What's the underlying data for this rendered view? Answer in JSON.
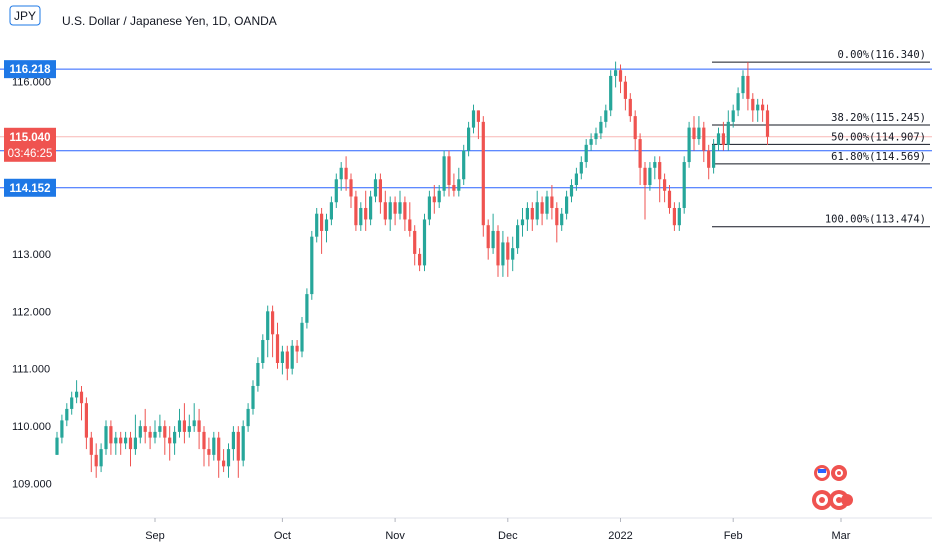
{
  "header": {
    "symbol_badge": "JPY",
    "title": "U.S. Dollar / Japanese Yen, 1D, OANDA"
  },
  "colors": {
    "up": "#26a69a",
    "down": "#ef5350",
    "hline": "#2962ff",
    "price_line": "#f8b7b5",
    "fib": "#131722",
    "tag_blue": "#1e78e6",
    "tag_red": "#ef5350"
  },
  "price_tags": {
    "current": "115.040",
    "countdown": "03:46:25"
  },
  "horizontal_lines": [
    {
      "value": 116.218,
      "label": "116.218"
    },
    {
      "value": 114.797,
      "label": "114.797"
    },
    {
      "value": 114.152,
      "label": "114.152"
    }
  ],
  "chart_data": {
    "type": "candlestick",
    "title": "U.S. Dollar / Japanese Yen, 1D, OANDA",
    "y_axis": {
      "min": 108.4,
      "max": 116.9,
      "ticks": [
        109,
        110,
        111,
        112,
        113,
        116
      ],
      "tick_labels": [
        "109.000",
        "110.000",
        "111.000",
        "112.000",
        "113.000",
        "116.000"
      ],
      "position": "left"
    },
    "x_axis": {
      "labels": [
        "Sep",
        "Oct",
        "Nov",
        "Dec",
        "2022",
        "Feb",
        "Mar"
      ],
      "label_index": [
        20,
        46,
        69,
        92,
        115,
        138,
        160
      ]
    },
    "fibonacci": [
      {
        "label": "0.00%(116.340)",
        "value": 116.34
      },
      {
        "label": "38.20%(115.245)",
        "value": 115.245
      },
      {
        "label": "50.00%(114.907)",
        "value": 114.907
      },
      {
        "label": "61.80%(114.569)",
        "value": 114.569
      },
      {
        "label": "100.00%(113.474)",
        "value": 113.474
      }
    ],
    "fib_range_index": [
      130,
      170
    ],
    "candles": [
      [
        109.5,
        109.8,
        109.5,
        109.9
      ],
      [
        109.8,
        110.1,
        109.7,
        110.2
      ],
      [
        110.1,
        110.3,
        110.0,
        110.4
      ],
      [
        110.3,
        110.5,
        110.2,
        110.6
      ],
      [
        110.5,
        110.6,
        110.4,
        110.8
      ],
      [
        110.6,
        110.4,
        110.1,
        110.7
      ],
      [
        110.4,
        109.8,
        109.6,
        110.5
      ],
      [
        109.8,
        109.5,
        109.2,
        109.9
      ],
      [
        109.5,
        109.3,
        109.1,
        109.7
      ],
      [
        109.3,
        109.6,
        109.2,
        109.7
      ],
      [
        109.6,
        110.0,
        109.5,
        110.1
      ],
      [
        110.0,
        109.7,
        109.5,
        110.1
      ],
      [
        109.7,
        109.8,
        109.5,
        109.9
      ],
      [
        109.8,
        109.7,
        109.5,
        109.9
      ],
      [
        109.7,
        109.8,
        109.6,
        109.9
      ],
      [
        109.8,
        109.6,
        109.3,
        109.9
      ],
      [
        109.6,
        109.8,
        109.5,
        110.2
      ],
      [
        109.8,
        110.0,
        109.7,
        110.1
      ],
      [
        110.0,
        109.9,
        109.7,
        110.3
      ],
      [
        109.9,
        109.8,
        109.6,
        110.0
      ],
      [
        109.8,
        109.9,
        109.7,
        110.1
      ],
      [
        109.9,
        110.0,
        109.8,
        110.2
      ],
      [
        110.0,
        109.8,
        109.5,
        110.1
      ],
      [
        109.8,
        109.7,
        109.4,
        110.0
      ],
      [
        109.7,
        109.9,
        109.5,
        110.0
      ],
      [
        109.9,
        110.1,
        109.8,
        110.3
      ],
      [
        110.1,
        109.9,
        109.7,
        110.4
      ],
      [
        109.9,
        110.0,
        109.8,
        110.2
      ],
      [
        110.0,
        110.1,
        109.9,
        110.4
      ],
      [
        110.1,
        109.9,
        109.6,
        110.3
      ],
      [
        109.9,
        109.6,
        109.3,
        110.0
      ],
      [
        109.6,
        109.5,
        109.3,
        109.8
      ],
      [
        109.5,
        109.8,
        109.4,
        109.9
      ],
      [
        109.8,
        109.4,
        109.1,
        109.9
      ],
      [
        109.4,
        109.3,
        109.2,
        109.6
      ],
      [
        109.3,
        109.6,
        109.1,
        109.7
      ],
      [
        109.6,
        109.9,
        109.4,
        110.0
      ],
      [
        109.9,
        109.4,
        109.1,
        110.0
      ],
      [
        109.4,
        110.0,
        109.3,
        110.1
      ],
      [
        110.0,
        110.3,
        109.9,
        110.4
      ],
      [
        110.3,
        110.7,
        110.2,
        110.8
      ],
      [
        110.7,
        111.1,
        110.6,
        111.2
      ],
      [
        111.1,
        111.5,
        111.0,
        111.6
      ],
      [
        111.5,
        112.0,
        111.2,
        112.1
      ],
      [
        112.0,
        111.6,
        111.2,
        112.1
      ],
      [
        111.6,
        111.1,
        111.0,
        111.8
      ],
      [
        111.1,
        111.3,
        110.9,
        111.4
      ],
      [
        111.3,
        111.0,
        110.8,
        111.4
      ],
      [
        111.0,
        111.4,
        110.9,
        111.5
      ],
      [
        111.4,
        111.3,
        111.1,
        111.5
      ],
      [
        111.3,
        111.8,
        111.2,
        111.9
      ],
      [
        111.8,
        112.3,
        111.7,
        112.4
      ],
      [
        112.3,
        113.3,
        112.2,
        113.4
      ],
      [
        113.3,
        113.7,
        113.2,
        113.8
      ],
      [
        113.7,
        113.4,
        113.0,
        113.8
      ],
      [
        113.4,
        113.6,
        113.2,
        113.7
      ],
      [
        113.6,
        113.9,
        113.5,
        114.0
      ],
      [
        113.9,
        114.3,
        113.8,
        114.4
      ],
      [
        114.3,
        114.5,
        114.1,
        114.6
      ],
      [
        114.5,
        114.3,
        114.1,
        114.7
      ],
      [
        114.3,
        114.0,
        113.8,
        114.4
      ],
      [
        114.0,
        113.5,
        113.4,
        114.1
      ],
      [
        113.5,
        113.8,
        113.4,
        113.9
      ],
      [
        113.8,
        113.6,
        113.4,
        114.1
      ],
      [
        113.6,
        114.0,
        113.5,
        114.1
      ],
      [
        114.0,
        114.3,
        113.9,
        114.4
      ],
      [
        114.3,
        113.9,
        113.7,
        114.4
      ],
      [
        113.9,
        113.6,
        113.5,
        114.1
      ],
      [
        113.6,
        113.9,
        113.4,
        114.0
      ],
      [
        113.9,
        113.7,
        113.5,
        114.0
      ],
      [
        113.7,
        113.9,
        113.6,
        114.1
      ],
      [
        113.9,
        113.6,
        113.4,
        114.0
      ],
      [
        113.6,
        113.4,
        113.3,
        113.9
      ],
      [
        113.4,
        113.0,
        112.8,
        113.5
      ],
      [
        113.0,
        112.8,
        112.7,
        113.1
      ],
      [
        112.8,
        113.6,
        112.7,
        113.7
      ],
      [
        113.6,
        114.0,
        113.5,
        114.1
      ],
      [
        114.0,
        113.9,
        113.7,
        114.2
      ],
      [
        113.9,
        114.1,
        113.8,
        114.2
      ],
      [
        114.1,
        114.7,
        114.0,
        114.8
      ],
      [
        114.7,
        114.2,
        114.0,
        114.8
      ],
      [
        114.2,
        114.1,
        114.0,
        114.4
      ],
      [
        114.1,
        114.3,
        114.0,
        114.5
      ],
      [
        114.3,
        114.8,
        114.2,
        114.9
      ],
      [
        114.8,
        115.2,
        114.7,
        115.3
      ],
      [
        115.2,
        115.5,
        115.1,
        115.6
      ],
      [
        115.5,
        115.3,
        115.0,
        115.5
      ],
      [
        115.3,
        113.5,
        113.3,
        115.4
      ],
      [
        113.5,
        113.1,
        112.9,
        113.6
      ],
      [
        113.1,
        113.4,
        113.0,
        113.7
      ],
      [
        113.4,
        112.8,
        112.6,
        113.5
      ],
      [
        112.8,
        113.2,
        112.6,
        113.4
      ],
      [
        113.2,
        112.9,
        112.6,
        113.3
      ],
      [
        112.9,
        113.1,
        112.7,
        113.3
      ],
      [
        113.1,
        113.5,
        113.0,
        113.6
      ],
      [
        113.5,
        113.6,
        113.3,
        113.8
      ],
      [
        113.6,
        113.8,
        113.4,
        113.9
      ],
      [
        113.8,
        113.6,
        113.4,
        113.9
      ],
      [
        113.6,
        113.9,
        113.5,
        114.1
      ],
      [
        113.9,
        113.7,
        113.5,
        114.0
      ],
      [
        113.7,
        114.0,
        113.6,
        114.1
      ],
      [
        114.0,
        113.8,
        113.6,
        114.2
      ],
      [
        113.8,
        113.5,
        113.2,
        113.9
      ],
      [
        113.5,
        113.7,
        113.4,
        113.8
      ],
      [
        113.7,
        114.0,
        113.6,
        114.1
      ],
      [
        114.0,
        114.2,
        113.9,
        114.3
      ],
      [
        114.2,
        114.4,
        114.1,
        114.5
      ],
      [
        114.4,
        114.6,
        114.3,
        114.7
      ],
      [
        114.6,
        114.9,
        114.5,
        115.0
      ],
      [
        114.9,
        115.0,
        114.8,
        115.1
      ],
      [
        115.0,
        115.1,
        114.9,
        115.2
      ],
      [
        115.1,
        115.3,
        115.0,
        115.4
      ],
      [
        115.3,
        115.5,
        115.2,
        115.6
      ],
      [
        115.5,
        116.1,
        115.4,
        116.2
      ],
      [
        116.1,
        116.2,
        115.9,
        116.35
      ],
      [
        116.2,
        116.0,
        115.8,
        116.3
      ],
      [
        116.0,
        115.7,
        115.5,
        116.1
      ],
      [
        115.7,
        115.4,
        115.3,
        115.8
      ],
      [
        115.4,
        115.0,
        114.8,
        115.5
      ],
      [
        115.0,
        114.5,
        114.2,
        115.1
      ],
      [
        114.5,
        114.2,
        113.6,
        114.6
      ],
      [
        114.2,
        114.5,
        114.1,
        114.6
      ],
      [
        114.5,
        114.6,
        114.3,
        114.7
      ],
      [
        114.6,
        114.3,
        113.9,
        114.7
      ],
      [
        114.3,
        114.1,
        113.9,
        114.4
      ],
      [
        114.1,
        113.8,
        113.7,
        114.2
      ],
      [
        113.8,
        113.5,
        113.4,
        113.9
      ],
      [
        113.5,
        113.8,
        113.4,
        113.9
      ],
      [
        113.8,
        114.6,
        113.7,
        114.7
      ],
      [
        114.6,
        115.2,
        114.5,
        115.3
      ],
      [
        115.2,
        115.0,
        114.8,
        115.4
      ],
      [
        115.0,
        115.2,
        114.9,
        115.4
      ],
      [
        115.2,
        114.8,
        114.6,
        115.3
      ],
      [
        114.8,
        114.5,
        114.3,
        114.9
      ],
      [
        114.5,
        114.9,
        114.4,
        115.0
      ],
      [
        114.9,
        115.1,
        114.8,
        115.2
      ],
      [
        115.1,
        114.9,
        114.8,
        115.3
      ],
      [
        114.9,
        115.3,
        114.8,
        115.5
      ],
      [
        115.3,
        115.5,
        115.2,
        115.6
      ],
      [
        115.5,
        115.8,
        115.4,
        115.9
      ],
      [
        115.8,
        116.1,
        115.7,
        116.2
      ],
      [
        116.1,
        115.7,
        115.5,
        116.34
      ],
      [
        115.7,
        115.5,
        115.3,
        115.8
      ],
      [
        115.5,
        115.6,
        115.3,
        115.7
      ],
      [
        115.6,
        115.5,
        115.3,
        115.7
      ],
      [
        115.5,
        115.04,
        114.9,
        115.6
      ]
    ]
  }
}
